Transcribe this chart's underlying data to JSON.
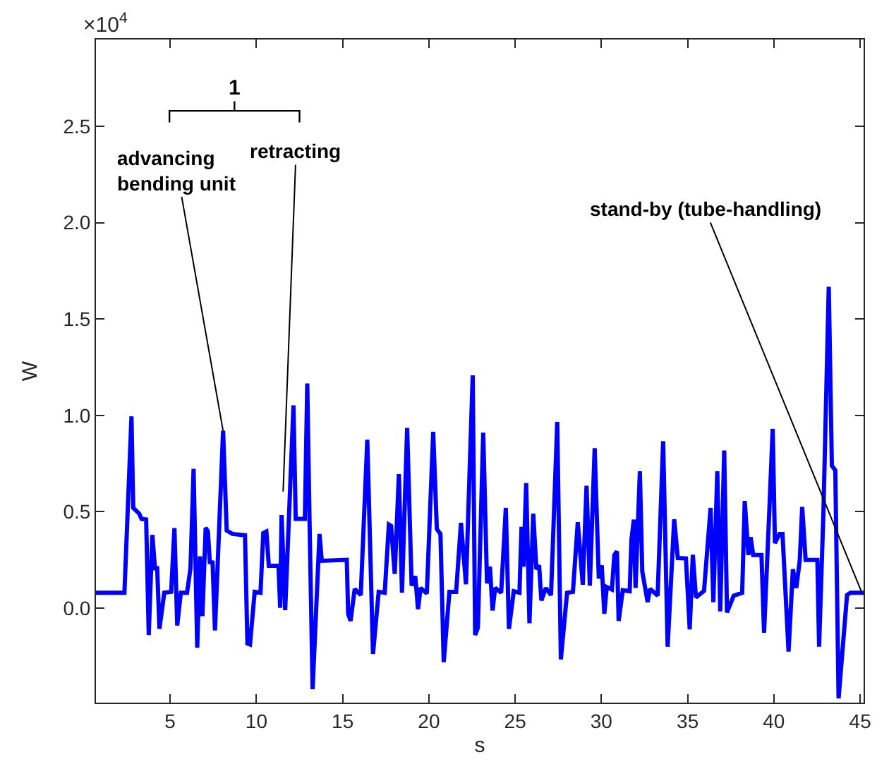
{
  "chart_data": {
    "type": "line",
    "xlabel": "s",
    "ylabel": "W",
    "x": [
      0.7,
      2.35,
      2.76,
      2.86,
      3.21,
      3.34,
      3.61,
      3.76,
      3.97,
      4.12,
      4.25,
      4.38,
      4.66,
      5.06,
      5.25,
      5.41,
      5.62,
      5.98,
      6.18,
      6.36,
      6.57,
      6.73,
      6.87,
      7.06,
      7.19,
      7.3,
      7.46,
      7.6,
      8.07,
      8.28,
      8.62,
      9.34,
      9.48,
      9.63,
      9.9,
      10.24,
      10.4,
      10.58,
      10.72,
      11.28,
      11.38,
      11.46,
      11.67,
      12.15,
      12.28,
      12.81,
      12.95,
      13.08,
      13.26,
      13.66,
      13.79,
      15.24,
      15.32,
      15.46,
      15.7,
      16.05,
      16.43,
      16.76,
      17.09,
      17.44,
      17.68,
      17.81,
      18.02,
      18.26,
      18.44,
      18.74,
      19.0,
      19.21,
      19.37,
      19.52,
      19.88,
      20.25,
      20.46,
      20.67,
      20.86,
      21.19,
      21.58,
      21.86,
      22.15,
      22.54,
      22.68,
      22.84,
      23.15,
      23.37,
      23.54,
      23.69,
      23.84,
      24.19,
      24.46,
      24.64,
      24.92,
      25.25,
      25.37,
      25.48,
      25.64,
      25.83,
      26.05,
      26.23,
      26.39,
      26.52,
      26.78,
      27.08,
      27.44,
      27.65,
      28.01,
      28.35,
      28.63,
      28.92,
      29.14,
      29.33,
      29.61,
      29.85,
      30.02,
      30.17,
      30.31,
      30.61,
      30.75,
      30.9,
      31.0,
      31.24,
      31.64,
      31.74,
      31.88,
      31.98,
      32.23,
      32.37,
      32.68,
      32.82,
      33.26,
      33.58,
      33.84,
      34.22,
      34.43,
      34.9,
      35.12,
      35.3,
      35.48,
      35.95,
      36.33,
      36.49,
      36.72,
      36.89,
      37.12,
      37.28,
      37.67,
      38.16,
      38.31,
      38.52,
      38.65,
      38.8,
      39.28,
      39.43,
      39.73,
      39.93,
      40.06,
      40.32,
      40.5,
      40.85,
      41.1,
      41.3,
      41.5,
      41.64,
      41.84,
      42.52,
      42.62,
      42.87,
      43.18,
      43.36,
      43.56,
      43.75,
      44.24,
      44.44,
      45.2
    ],
    "series": [
      {
        "color": "#0000ff",
        "values": [
          0.08,
          0.08,
          0.995,
          0.52,
          0.49,
          0.463,
          0.46,
          -0.139,
          0.38,
          0.207,
          0.207,
          -0.107,
          0.08,
          0.085,
          0.415,
          -0.09,
          0.08,
          0.08,
          0.207,
          0.723,
          -0.205,
          0.269,
          -0.041,
          0.417,
          0.398,
          0.239,
          0.237,
          -0.115,
          0.92,
          0.403,
          0.385,
          0.378,
          -0.183,
          -0.188,
          0.085,
          0.08,
          0.39,
          0.398,
          0.22,
          0.22,
          0.002,
          0.483,
          -0.01,
          1.052,
          0.463,
          0.463,
          1.166,
          0.459,
          -0.42,
          0.385,
          0.246,
          0.251,
          -0.03,
          -0.066,
          0.1,
          0.068,
          0.874,
          -0.237,
          0.085,
          0.08,
          0.434,
          0.427,
          0.178,
          0.695,
          0.08,
          0.935,
          0.117,
          0.166,
          -0.005,
          0.105,
          0.076,
          0.915,
          0.41,
          0.385,
          -0.28,
          0.085,
          0.085,
          0.442,
          0.124,
          1.208,
          -0.139,
          -0.102,
          0.91,
          0.129,
          0.215,
          -0.012,
          0.105,
          0.08,
          0.52,
          -0.107,
          0.088,
          0.08,
          0.422,
          0.215,
          0.649,
          -0.078,
          0.49,
          0.202,
          0.222,
          0.04,
          0.105,
          0.068,
          0.966,
          -0.266,
          0.08,
          0.085,
          0.446,
          0.122,
          0.635,
          0.117,
          0.83,
          0.154,
          0.222,
          -0.029,
          0.11,
          0.097,
          0.276,
          0.295,
          -0.066,
          0.093,
          0.088,
          0.354,
          0.459,
          0.105,
          0.71,
          0.19,
          0.032,
          0.1,
          0.065,
          0.866,
          -0.2,
          0.461,
          0.26,
          0.258,
          -0.11,
          0.277,
          0.056,
          0.09,
          0.52,
          0.031,
          0.71,
          -0.017,
          0.818,
          -0.022,
          0.065,
          0.08,
          0.556,
          0.276,
          0.368,
          0.276,
          0.276,
          -0.127,
          0.495,
          0.93,
          0.337,
          0.385,
          0.385,
          -0.225,
          0.202,
          0.105,
          0.25,
          0.525,
          0.25,
          0.25,
          -0.2,
          0.495,
          1.667,
          0.739,
          0.715,
          -0.468,
          0.068,
          0.08,
          0.08
        ]
      }
    ],
    "xlim": [
      0.7,
      45.2
    ],
    "xticks": [
      5,
      10,
      15,
      20,
      25,
      30,
      35,
      40,
      45
    ],
    "ylim": [
      -0.49,
      2.95
    ],
    "yticks": [
      {
        "value": 0,
        "label": "0.0"
      },
      0.5,
      {
        "value": 1,
        "label": "1.0"
      },
      1.5,
      {
        "value": 2,
        "label": "2.0"
      },
      2.5
    ],
    "marker": "none",
    "line_style": "solid",
    "annotations": [
      "×10$^{4}$",
      "1",
      {
        "text": "advancing\nbending unit",
        "x": 8.07,
        "y": 0.92
      },
      {
        "text": "retracting",
        "x": 11.55,
        "y": 0.605
      },
      {
        "text": "stand-by (tube-handling)",
        "x": 45.1,
        "y": 0.08
      }
    ]
  }
}
